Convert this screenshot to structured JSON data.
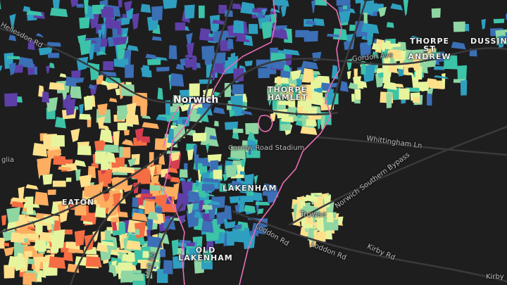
{
  "map": {
    "place_labels": {
      "norwich": "Norwich",
      "thorpe_hamlet": "THORPE HAMLET",
      "thorpe_st_andrew": "THORPE ST ANDREW",
      "dussindale": "DUSSIND",
      "lakenham": "LAKENHAM",
      "old_lakenham": "OLD LAKENHAM",
      "eaton": "EATON",
      "trowse": "Trowse",
      "stadium": "Carrow Road Stadium",
      "edge_left": "glia"
    },
    "road_labels": {
      "hellesdon": "Hellesdon Rd",
      "gordon_ave": "Gordon Ave",
      "whittingham": "Whittingham Ln",
      "southern_bypass": "Norwich Southern Bypass",
      "loddon_rd_1": "Loddon Rd",
      "loddon_rd_2": "Loddon Rd",
      "kirby_rd": "Kirby Rd",
      "hall_rd": "Hall Rd",
      "kirby_edge": "Kirby"
    },
    "colors": {
      "background": "#1e1e1f",
      "roads": "#3a3a3c",
      "boundary": "#e86fb3",
      "scale": [
        "#5e3fa7",
        "#3b6fb6",
        "#2f9fc0",
        "#3cc3a8",
        "#8fd6a3",
        "#e6f59d",
        "#fee08b",
        "#fdae61",
        "#f46d43",
        "#d53e4f"
      ]
    }
  }
}
